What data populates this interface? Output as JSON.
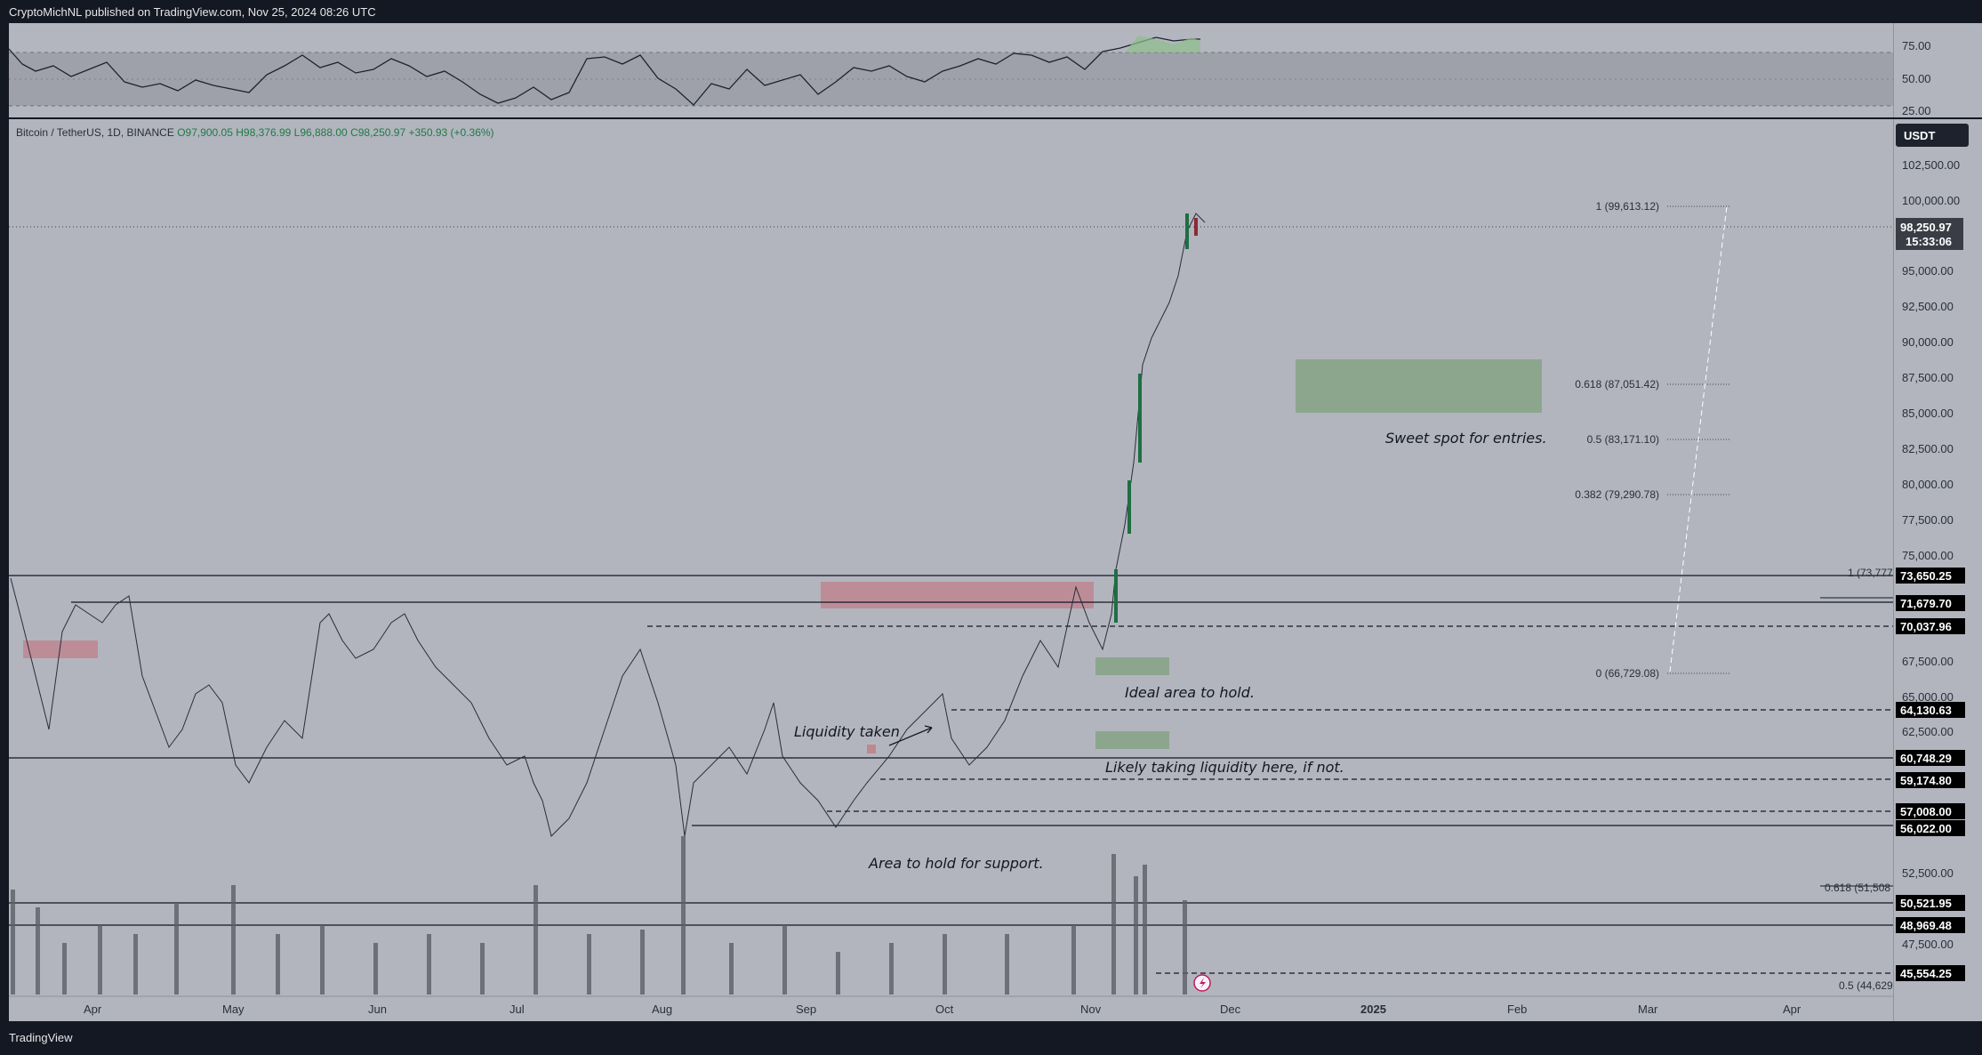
{
  "header": {
    "publisher": "CryptoMichNL published on TradingView.com, Nov 25, 2024 08:26 UTC"
  },
  "legend": {
    "symbol": "Bitcoin / TetherUS, 1D, BINANCE",
    "open": "O97,900.05",
    "high": "H98,376.99",
    "low": "L96,888.00",
    "close": "C98,250.97",
    "change": "+350.93 (+0.36%)"
  },
  "currency": "USDT",
  "price_labels": [
    "102,500.00",
    "100,000.00",
    "95,000.00",
    "92,500.00",
    "90,000.00",
    "87,500.00",
    "85,000.00",
    "82,500.00",
    "80,000.00",
    "77,500.00",
    "75,000.00",
    "67,500.00",
    "65,000.00",
    "62,500.00",
    "52,500.00",
    "47,500.00"
  ],
  "rsi_labels": [
    "75.00",
    "50.00",
    "25.00"
  ],
  "current_price": {
    "price": "98,250.97",
    "countdown": "15:33:06"
  },
  "levels": [
    "73,650.25",
    "71,679.70",
    "70,037.96",
    "64,130.63",
    "60,748.29",
    "59,174.80",
    "57,008.00",
    "56,022.00",
    "50,521.95",
    "48,969.48",
    "45,554.25"
  ],
  "fib_right": {
    "l1": "1 (99,613.12)",
    "l618": "0.618 (87,051.42)",
    "l5": "0.5 (83,171.10)",
    "l382": "0.382 (79,290.78)",
    "l0": "0 (66,729.08)"
  },
  "fib_left": {
    "l1": "1 (73,777",
    "l618": "0.618 (51,508",
    "l5": "0.5 (44,629"
  },
  "annotations": {
    "sweet_spot": "Sweet spot for entries.",
    "ideal_area": "Ideal area to hold.",
    "liquidity_taken": "Liquidity taken",
    "likely_taking": "Likely taking liquidity here, if not.",
    "area_support": "Area to hold for support."
  },
  "time_axis": [
    "Apr",
    "May",
    "Jun",
    "Jul",
    "Aug",
    "Sep",
    "Oct",
    "Nov",
    "Dec",
    "2025",
    "Feb",
    "Mar",
    "Apr"
  ],
  "footer": {
    "logo": "TradingView"
  }
}
